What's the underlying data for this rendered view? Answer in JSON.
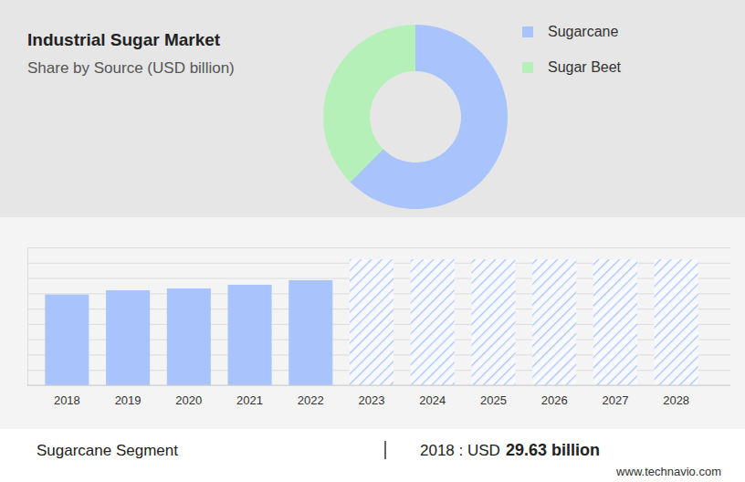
{
  "chart_data": [
    {
      "type": "donut",
      "title": "Industrial Sugar Market",
      "subtitle": "Share by Source (USD billion)",
      "categories": [
        "Sugarcane",
        "Sugar Beet"
      ],
      "values": [
        62.5,
        37.5
      ],
      "colors": [
        "#a9c4fc",
        "#b5f0b8"
      ],
      "legend": "top-right"
    },
    {
      "type": "bar",
      "categories": [
        "2018",
        "2019",
        "2020",
        "2021",
        "2022",
        "2023",
        "2024",
        "2025",
        "2026",
        "2027",
        "2028"
      ],
      "series": [
        {
          "color": "#a9c4fc",
          "line_style": "solid",
          "values": [
            29.63,
            31.0,
            31.6,
            32.8,
            34.3,
            null,
            null,
            null,
            null,
            null,
            null
          ]
        },
        {
          "color": "#a9c4fc",
          "line_style": "hatched",
          "values": [
            null,
            null,
            null,
            null,
            null,
            41.1,
            41.1,
            41.1,
            41.1,
            41.1,
            41.1
          ]
        }
      ],
      "ylim": [
        0,
        45
      ],
      "yticks": [
        0,
        5,
        10,
        15,
        20,
        25,
        30,
        35,
        40,
        45
      ],
      "grid": true,
      "tick_labels": "x",
      "annotations": [
        "Sugarcane Segment",
        "2018 : USD",
        "29.63 billion",
        "www.technavio.com"
      ]
    }
  ]
}
